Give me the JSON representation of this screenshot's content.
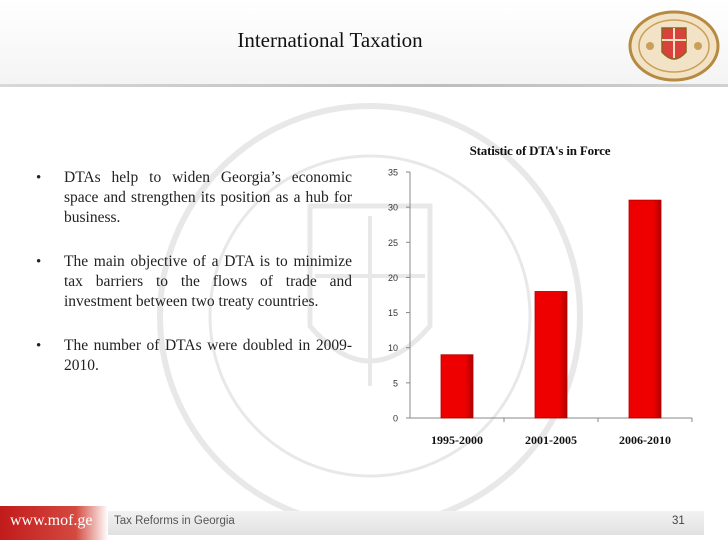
{
  "header": {
    "title": "International Taxation"
  },
  "logo": {
    "name": "ministry-seal-icon"
  },
  "bullets": [
    {
      "text": "DTAs help to widen Georgia’s economic space and strengthen its position as a hub for business."
    },
    {
      "text": "The main objective of a DTA is to minimize tax barriers to the flows of trade and   investment between two treaty countries."
    },
    {
      "text": " The number of DTAs were doubled in 2009-2010."
    }
  ],
  "bullet_symbol": "•",
  "colors": {
    "bar": "#ee0000",
    "bar_dark": "#b30000",
    "accent": "#c11b1b"
  },
  "chart_data": {
    "type": "bar",
    "title": "Statistic of DTA's in Force",
    "categories": [
      "1995-2000",
      "2001-2005",
      "2006-2010"
    ],
    "values": [
      9,
      18,
      31
    ],
    "ylim": [
      0,
      35
    ],
    "yticks": [
      0,
      5,
      10,
      15,
      20,
      25,
      30,
      35
    ],
    "xlabel": "",
    "ylabel": "",
    "grid": false,
    "legend": "none"
  },
  "footer": {
    "url": "www.mof.ge",
    "text": "Tax Reforms in Georgia",
    "page": "31"
  }
}
